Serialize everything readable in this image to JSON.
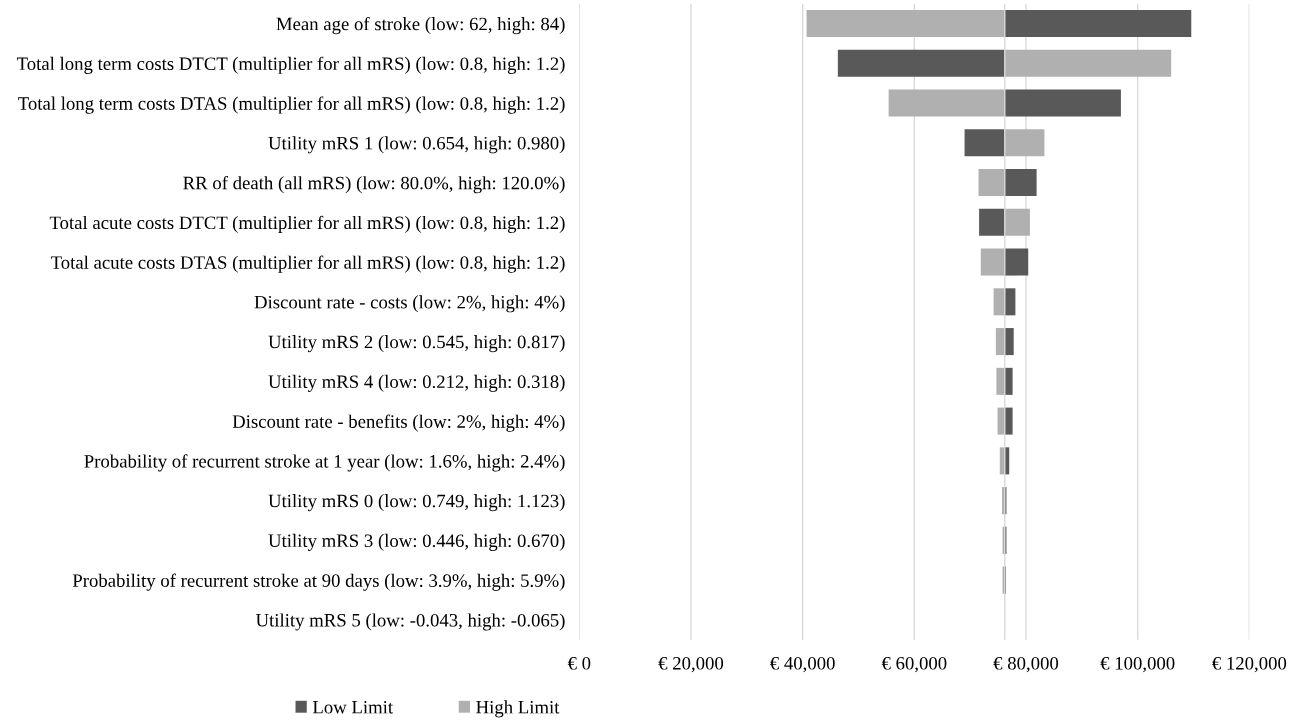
{
  "chart_data": {
    "type": "bar",
    "orientation": "horizontal",
    "categories": [
      "Mean age of stroke (low: 62, high: 84)",
      "Total long term costs DTCT (multiplier for all mRS) (low: 0.8, high: 1.2)",
      "Total long term costs DTAS (multiplier for all mRS) (low: 0.8, high: 1.2)",
      "Utility mRS 1 (low: 0.654, high: 0.980)",
      "RR of death (all mRS) (low: 80.0%, high: 120.0%)",
      "Total acute costs DTCT (multiplier for all mRS) (low: 0.8, high: 1.2)",
      "Total acute costs DTAS (multiplier for all mRS) (low: 0.8, high: 1.2)",
      "Discount rate - costs (low: 2%, high: 4%)",
      "Utility mRS 2 (low: 0.545, high: 0.817)",
      "Utility mRS 4 (low: 0.212, high: 0.318)",
      "Discount rate - benefits (low: 2%, high: 4%)",
      "Probability of recurrent stroke at 1 year (low: 1.6%, high: 2.4%)",
      "Utility mRS 0 (low: 0.749, high: 1.123)",
      "Utility mRS 3 (low: 0.446, high: 0.670)",
      "Probability of recurrent stroke at 90 days (low: 3.9%, high: 5.9%)",
      "Utility mRS 5 (low: -0.043, high: -0.065)"
    ],
    "series": [
      {
        "name": "Low Limit",
        "color": "#595959",
        "base": [
          76200,
          76200,
          76200,
          76200,
          76200,
          76200,
          76200,
          76200,
          76200,
          76200,
          76200,
          76200,
          76200,
          76200,
          76200,
          null
        ],
        "values": [
          33400,
          -29900,
          20800,
          -7200,
          5700,
          -4600,
          4200,
          1900,
          1600,
          1400,
          1400,
          800,
          300,
          300,
          200,
          null
        ]
      },
      {
        "name": "High Limit",
        "color": "#b0b0b0",
        "base": [
          76200,
          76200,
          76200,
          76200,
          76200,
          76200,
          76200,
          76200,
          76200,
          76200,
          76200,
          76200,
          76200,
          76200,
          76200,
          null
        ],
        "values": [
          -35500,
          29800,
          -20800,
          7100,
          -4700,
          4500,
          -4300,
          -2000,
          -1600,
          -1500,
          -1300,
          -900,
          -500,
          -400,
          -400,
          null
        ]
      }
    ],
    "xlim": [
      0,
      120000
    ],
    "xticks": [
      {
        "value": 0,
        "label": "€ 0"
      },
      {
        "value": 20000,
        "label": "€ 20,000"
      },
      {
        "value": 40000,
        "label": "€ 40,000"
      },
      {
        "value": 60000,
        "label": "€ 60,000"
      },
      {
        "value": 80000,
        "label": "€ 80,000"
      },
      {
        "value": 100000,
        "label": "€ 100,000"
      },
      {
        "value": 120000,
        "label": "€ 120,000"
      }
    ],
    "ref_lines": [
      {
        "axis": "x",
        "value": 76200,
        "color": "#d9d9d9"
      }
    ],
    "grid": "x",
    "legend": "bottom"
  }
}
